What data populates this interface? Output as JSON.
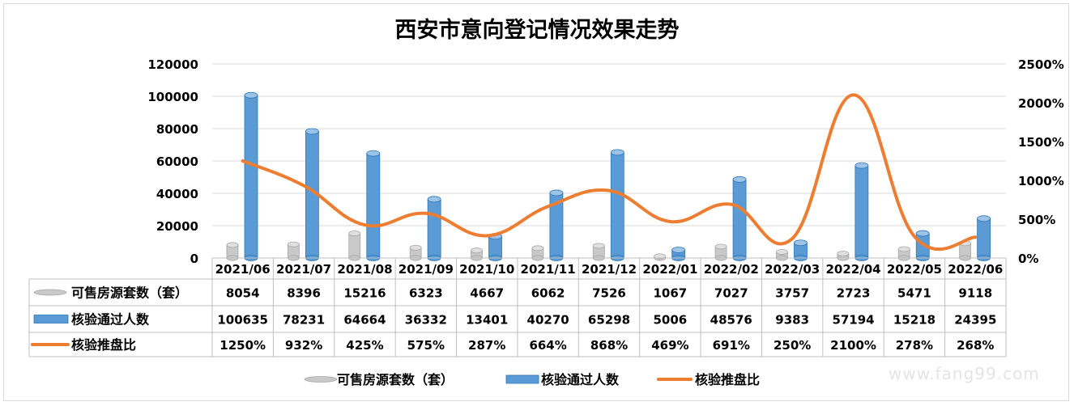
{
  "chart_data": {
    "type": "bar",
    "title": "西安市意向登记情况效果走势",
    "categories": [
      "2021/06",
      "2021/07",
      "2021/08",
      "2021/09",
      "2021/10",
      "2021/11",
      "2021/12",
      "2022/01",
      "2022/02",
      "2022/03",
      "2022/04",
      "2022/05",
      "2022/06"
    ],
    "y_left": {
      "min": 0,
      "max": 120000,
      "ticks": [
        "0",
        "20000",
        "40000",
        "60000",
        "80000",
        "100000",
        "120000"
      ]
    },
    "y_right": {
      "min": 0,
      "max": 2500,
      "ticks": [
        "0%",
        "500%",
        "1000%",
        "1500%",
        "2000%",
        "2500%"
      ]
    },
    "grid": true,
    "legend_position": "bottom",
    "series": [
      {
        "name": "可售房源套数（套）",
        "kind": "bar",
        "axis": "left",
        "color": "#c9c9c9",
        "values": [
          8054,
          8396,
          15216,
          6323,
          4667,
          6062,
          7526,
          1067,
          7027,
          3757,
          2723,
          5471,
          9118
        ],
        "labels": [
          "8054",
          "8396",
          "15216",
          "6323",
          "4667",
          "6062",
          "7526",
          "1067",
          "7027",
          "3757",
          "2723",
          "5471",
          "9118"
        ]
      },
      {
        "name": "核验通过人数",
        "kind": "bar",
        "axis": "left",
        "color": "#5b9bd5",
        "values": [
          100635,
          78231,
          64664,
          36332,
          13401,
          40270,
          65298,
          5006,
          48576,
          9383,
          57194,
          15218,
          24395
        ],
        "labels": [
          "100635",
          "78231",
          "64664",
          "36332",
          "13401",
          "40270",
          "65298",
          "5006",
          "48576",
          "9383",
          "57194",
          "15218",
          "24395"
        ]
      },
      {
        "name": "核验推盘比",
        "kind": "line",
        "axis": "right",
        "color": "#ed7d31",
        "values": [
          1250,
          932,
          425,
          575,
          287,
          664,
          868,
          469,
          691,
          250,
          2100,
          278,
          268
        ],
        "labels": [
          "1250%",
          "932%",
          "425%",
          "575%",
          "287%",
          "664%",
          "868%",
          "469%",
          "691%",
          "250%",
          "2100%",
          "278%",
          "268%"
        ]
      }
    ]
  },
  "watermark": "www.fang99.com"
}
